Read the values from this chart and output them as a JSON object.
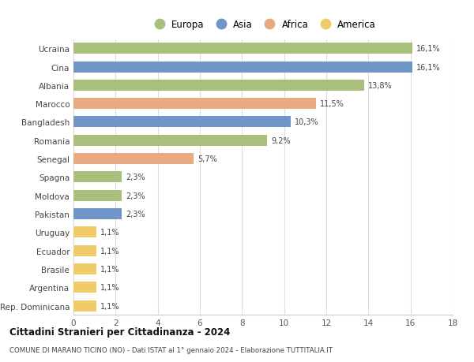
{
  "categories": [
    "Ucraina",
    "Cina",
    "Albania",
    "Marocco",
    "Bangladesh",
    "Romania",
    "Senegal",
    "Spagna",
    "Moldova",
    "Pakistan",
    "Uruguay",
    "Ecuador",
    "Brasile",
    "Argentina",
    "Rep. Dominicana"
  ],
  "values": [
    16.1,
    16.1,
    13.8,
    11.5,
    10.3,
    9.2,
    5.7,
    2.3,
    2.3,
    2.3,
    1.1,
    1.1,
    1.1,
    1.1,
    1.1
  ],
  "labels": [
    "16,1%",
    "16,1%",
    "13,8%",
    "11,5%",
    "10,3%",
    "9,2%",
    "5,7%",
    "2,3%",
    "2,3%",
    "2,3%",
    "1,1%",
    "1,1%",
    "1,1%",
    "1,1%",
    "1,1%"
  ],
  "continents": [
    "Europa",
    "Asia",
    "Europa",
    "Africa",
    "Asia",
    "Europa",
    "Africa",
    "Europa",
    "Europa",
    "Asia",
    "America",
    "America",
    "America",
    "America",
    "America"
  ],
  "colors": {
    "Europa": "#a8c07c",
    "Asia": "#7096c8",
    "Africa": "#e8aa80",
    "America": "#f0cc68"
  },
  "legend_order": [
    "Europa",
    "Asia",
    "Africa",
    "America"
  ],
  "title": "Cittadini Stranieri per Cittadinanza - 2024",
  "subtitle": "COMUNE DI MARANO TICINO (NO) - Dati ISTAT al 1° gennaio 2024 - Elaborazione TUTTITALIA.IT",
  "xlim": [
    0,
    18
  ],
  "xticks": [
    0,
    2,
    4,
    6,
    8,
    10,
    12,
    14,
    16,
    18
  ],
  "background_color": "#ffffff",
  "grid_color": "#dddddd"
}
